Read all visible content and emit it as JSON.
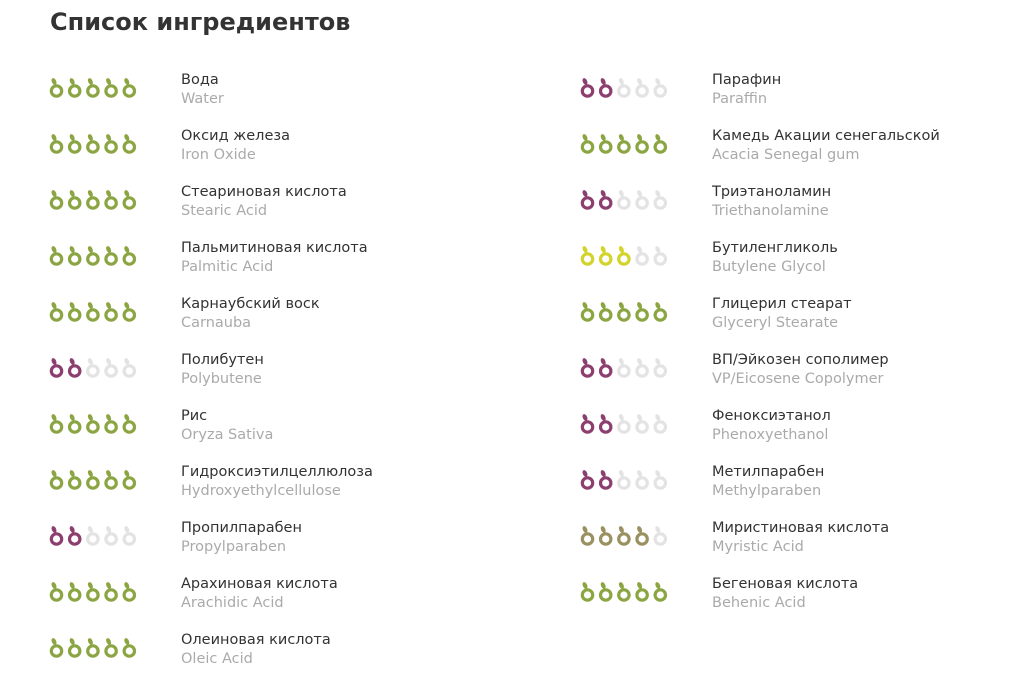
{
  "title": "Список ингредиентов",
  "scale_max": 5,
  "columns": [
    [
      {
        "name": "Вода",
        "latin": "Water",
        "rating": 5,
        "color": "#8ba543"
      },
      {
        "name": "Оксид железа",
        "latin": "Iron Oxide",
        "rating": 5,
        "color": "#8ba543"
      },
      {
        "name": "Стеариновая кислота",
        "latin": "Stearic Acid",
        "rating": 5,
        "color": "#8ba543"
      },
      {
        "name": "Пальмитиновая кислота",
        "latin": "Palmitic Acid",
        "rating": 5,
        "color": "#8ba543"
      },
      {
        "name": "Карнаубский воск",
        "latin": "Carnauba",
        "rating": 5,
        "color": "#8ba543"
      },
      {
        "name": "Полибутен",
        "latin": "Polybutene",
        "rating": 2,
        "color": "#8c3f6e"
      },
      {
        "name": "Рис",
        "latin": "Oryza Sativa",
        "rating": 5,
        "color": "#8ba543"
      },
      {
        "name": "Гидроксиэтилцеллюлоза",
        "latin": "Hydroxyethylcellulose",
        "rating": 5,
        "color": "#8ba543"
      },
      {
        "name": "Пропилпарабен",
        "latin": "Propylparaben",
        "rating": 2,
        "color": "#8c3f6e"
      },
      {
        "name": "Арахиновая кислота",
        "latin": "Arachidic Acid",
        "rating": 5,
        "color": "#8ba543"
      },
      {
        "name": "Олеиновая кислота",
        "latin": "Oleic Acid",
        "rating": 5,
        "color": "#8ba543"
      }
    ],
    [
      {
        "name": "Парафин",
        "latin": "Paraffin",
        "rating": 2,
        "color": "#8c3f6e"
      },
      {
        "name": "Камедь Акации сенегальской",
        "latin": "Acacia Senegal gum",
        "rating": 5,
        "color": "#8ba543"
      },
      {
        "name": "Триэтаноламин",
        "latin": "Triethanolamine",
        "rating": 2,
        "color": "#8c3f6e"
      },
      {
        "name": "Бутиленгликоль",
        "latin": "Butylene Glycol",
        "rating": 3,
        "color": "#d3d42b"
      },
      {
        "name": "Глицерил стеарат",
        "latin": "Glyceryl Stearate",
        "rating": 5,
        "color": "#8ba543"
      },
      {
        "name": "ВП/Эйкозен сополимер",
        "latin": "VP/Eicosene Copolymer",
        "rating": 2,
        "color": "#8c3f6e"
      },
      {
        "name": "Феноксиэтанол",
        "latin": "Phenoxyethanol",
        "rating": 2,
        "color": "#8c3f6e"
      },
      {
        "name": "Метилпарабен",
        "latin": "Methylparaben",
        "rating": 2,
        "color": "#8c3f6e"
      },
      {
        "name": "Миристиновая кислота",
        "latin": "Myristic Acid",
        "rating": 4,
        "color": "#9a9161"
      },
      {
        "name": "Бегеновая кислота",
        "latin": "Behenic Acid",
        "rating": 5,
        "color": "#8ba543"
      }
    ]
  ]
}
